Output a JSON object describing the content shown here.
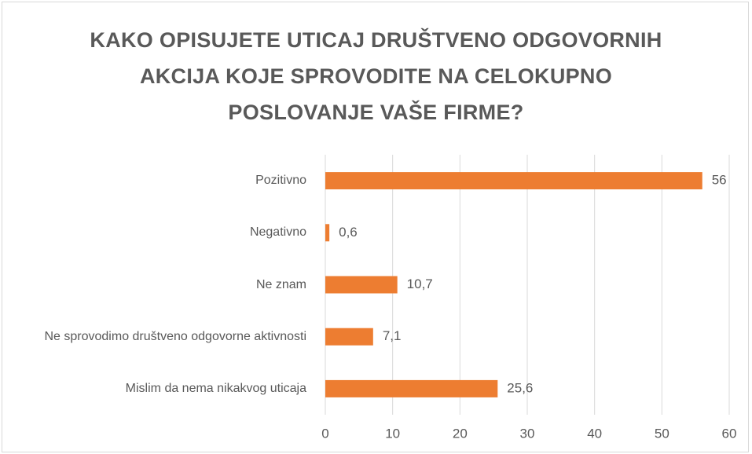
{
  "chart_data": {
    "type": "bar",
    "orientation": "horizontal",
    "title": "KAKO OPISUJETE UTICAJ DRUŠTVENO ODGOVORNIH AKCIJA KOJE SPROVODITE NA CELOKUPNO POSLOVANJE VAŠE FIRME?",
    "categories": [
      "Pozitivno",
      "Negativno",
      "Ne znam",
      "Ne sprovodimo društveno odgovorne aktivnosti",
      "Mislim da nema nikakvog uticaja"
    ],
    "values": [
      56,
      0.6,
      10.7,
      7.1,
      25.6
    ],
    "value_labels": [
      "56",
      "0,6",
      "10,7",
      "7,1",
      "25,6"
    ],
    "color": "#ed7d31",
    "xlim": [
      0,
      60
    ],
    "xticks": [
      0,
      10,
      20,
      30,
      40,
      50,
      60
    ],
    "grid": true
  }
}
